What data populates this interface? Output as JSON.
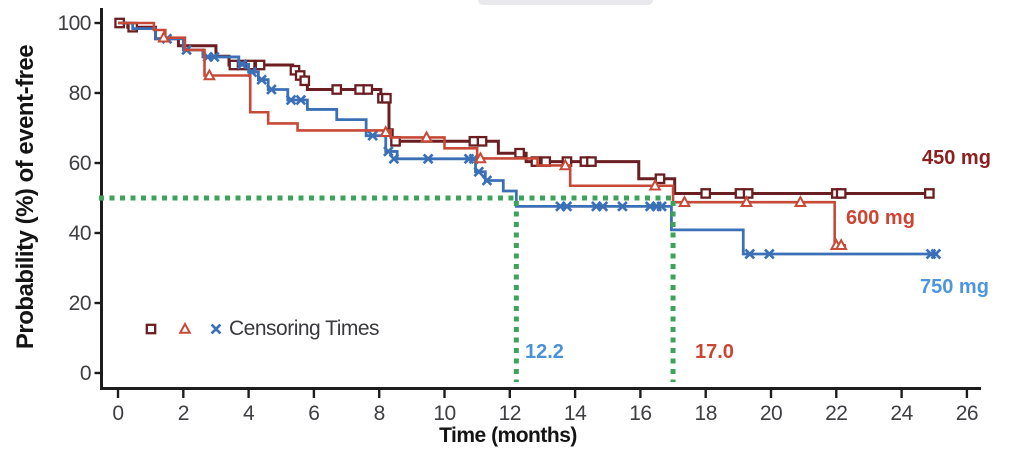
{
  "window": {
    "top_edge_pill": true
  },
  "chart_data": {
    "type": "line",
    "subtype": "kaplan-meier-step-curves",
    "title": "",
    "xlabel": "Time (months)",
    "ylabel": "Probability (%) of event-free",
    "xticks": [
      0,
      2,
      4,
      6,
      8,
      10,
      12,
      14,
      16,
      18,
      20,
      22,
      24,
      26
    ],
    "yticks": [
      0,
      20,
      40,
      60,
      80,
      100
    ],
    "xlim": [
      0,
      26
    ],
    "ylim": [
      0,
      100
    ],
    "grid": false,
    "axis_color": "#1d1d1d",
    "tick_label_color": "#3e3e43",
    "legend": {
      "label": "Censoring Times",
      "position": "inside-lower-left"
    },
    "series": [
      {
        "name": "450 mg",
        "label": "450 mg",
        "dose_mg": 450,
        "color": "#6b1e21",
        "label_color": "#8c2020",
        "marker": "square",
        "line_width": 3,
        "steps": [
          [
            0,
            100
          ],
          [
            0.3,
            98.8
          ],
          [
            1.15,
            95.5
          ],
          [
            1.85,
            93.5
          ],
          [
            3.0,
            90.5
          ],
          [
            3.4,
            88
          ],
          [
            5.35,
            86.5
          ],
          [
            5.5,
            85
          ],
          [
            5.65,
            83.5
          ],
          [
            5.8,
            81
          ],
          [
            8.05,
            78.5
          ],
          [
            8.3,
            69.5
          ],
          [
            8.4,
            66.2
          ],
          [
            11.65,
            62.8
          ],
          [
            12.5,
            60.4
          ],
          [
            15.95,
            55.5
          ],
          [
            17.05,
            51.3
          ],
          [
            24.85,
            51.3
          ]
        ],
        "censor_times": [
          [
            0.05,
            100
          ],
          [
            0.45,
            98.8
          ],
          [
            3.55,
            88
          ],
          [
            3.8,
            88
          ],
          [
            4.05,
            88
          ],
          [
            4.35,
            88
          ],
          [
            5.42,
            86.5
          ],
          [
            5.58,
            85
          ],
          [
            5.72,
            83.5
          ],
          [
            6.7,
            81
          ],
          [
            7.4,
            81
          ],
          [
            7.65,
            81
          ],
          [
            8.1,
            78.5
          ],
          [
            8.22,
            78.5
          ],
          [
            8.5,
            66.2
          ],
          [
            10.9,
            66.2
          ],
          [
            11.15,
            66.2
          ],
          [
            12.3,
            62.8
          ],
          [
            12.8,
            60.4
          ],
          [
            13.1,
            60.4
          ],
          [
            13.75,
            60.4
          ],
          [
            14.3,
            60.4
          ],
          [
            14.5,
            60.4
          ],
          [
            16.6,
            55.5
          ],
          [
            18.0,
            51.3
          ],
          [
            19.05,
            51.3
          ],
          [
            19.3,
            51.3
          ],
          [
            22.0,
            51.3
          ],
          [
            22.15,
            51.3
          ],
          [
            24.85,
            51.3
          ]
        ]
      },
      {
        "name": "600 mg",
        "label": "600 mg",
        "dose_mg": 600,
        "color": "#c74a38",
        "label_color": "#cb4434",
        "marker": "triangle",
        "line_width": 2.6,
        "steps": [
          [
            0,
            100
          ],
          [
            1.1,
            98
          ],
          [
            1.45,
            95.8
          ],
          [
            2.05,
            92.3
          ],
          [
            2.65,
            85
          ],
          [
            4.05,
            74.5
          ],
          [
            4.6,
            71.3
          ],
          [
            5.5,
            69.3
          ],
          [
            8.35,
            67.3
          ],
          [
            10.0,
            64.2
          ],
          [
            11.0,
            61.3
          ],
          [
            12.85,
            59.3
          ],
          [
            13.85,
            53.5
          ],
          [
            17.0,
            48.8
          ],
          [
            21.95,
            36.5
          ],
          [
            22.3,
            36.5
          ]
        ],
        "censor_times": [
          [
            1.4,
            95.8
          ],
          [
            2.8,
            85
          ],
          [
            8.2,
            68.8
          ],
          [
            9.45,
            67.3
          ],
          [
            11.1,
            61.3
          ],
          [
            13.7,
            59.3
          ],
          [
            16.45,
            53.5
          ],
          [
            17.35,
            48.8
          ],
          [
            19.25,
            48.8
          ],
          [
            20.9,
            48.8
          ],
          [
            22.0,
            36.5
          ],
          [
            22.15,
            36.5
          ]
        ]
      },
      {
        "name": "750 mg",
        "label": "750 mg",
        "dose_mg": 750,
        "color": "#3b70b6",
        "label_color": "#4e95dd",
        "marker": "x",
        "line_width": 2.8,
        "steps": [
          [
            0,
            100
          ],
          [
            0.45,
            98.4
          ],
          [
            1.15,
            95.5
          ],
          [
            2.0,
            92.3
          ],
          [
            2.6,
            90.3
          ],
          [
            3.7,
            88.2
          ],
          [
            4.0,
            86
          ],
          [
            4.3,
            83.8
          ],
          [
            4.6,
            81
          ],
          [
            5.2,
            78
          ],
          [
            5.8,
            75.3
          ],
          [
            6.7,
            72.4
          ],
          [
            7.6,
            67.8
          ],
          [
            8.2,
            63.3
          ],
          [
            8.55,
            61.2
          ],
          [
            10.95,
            57.5
          ],
          [
            11.25,
            55
          ],
          [
            11.8,
            52
          ],
          [
            12.2,
            47.6
          ],
          [
            16.95,
            40.9
          ],
          [
            19.15,
            34
          ],
          [
            25.1,
            34
          ]
        ],
        "censor_times": [
          [
            1.5,
            95.5
          ],
          [
            2.1,
            92.3
          ],
          [
            2.75,
            90.3
          ],
          [
            2.95,
            90.3
          ],
          [
            3.8,
            88.2
          ],
          [
            4.1,
            86
          ],
          [
            4.4,
            83.8
          ],
          [
            4.7,
            81
          ],
          [
            5.3,
            78
          ],
          [
            5.6,
            78
          ],
          [
            7.8,
            67.8
          ],
          [
            8.28,
            63.3
          ],
          [
            8.45,
            61.2
          ],
          [
            9.5,
            61.2
          ],
          [
            10.75,
            61.2
          ],
          [
            10.9,
            61.2
          ],
          [
            11.05,
            57.5
          ],
          [
            11.3,
            55
          ],
          [
            13.55,
            47.6
          ],
          [
            13.75,
            47.6
          ],
          [
            14.65,
            47.6
          ],
          [
            14.85,
            47.6
          ],
          [
            15.45,
            47.6
          ],
          [
            16.3,
            47.6
          ],
          [
            16.5,
            47.6
          ],
          [
            16.65,
            47.6
          ],
          [
            19.35,
            34
          ],
          [
            19.95,
            34
          ],
          [
            24.9,
            34
          ],
          [
            25.05,
            34
          ]
        ]
      }
    ],
    "reference_lines": {
      "probability_pct": 50,
      "color": "#3da35c",
      "style": "dotted",
      "median_markers": [
        {
          "text": "12.2",
          "time_months": 12.2,
          "color": "#4a91d9"
        },
        {
          "text": "17.0",
          "time_months": 17.0,
          "color": "#c94632"
        }
      ]
    }
  }
}
